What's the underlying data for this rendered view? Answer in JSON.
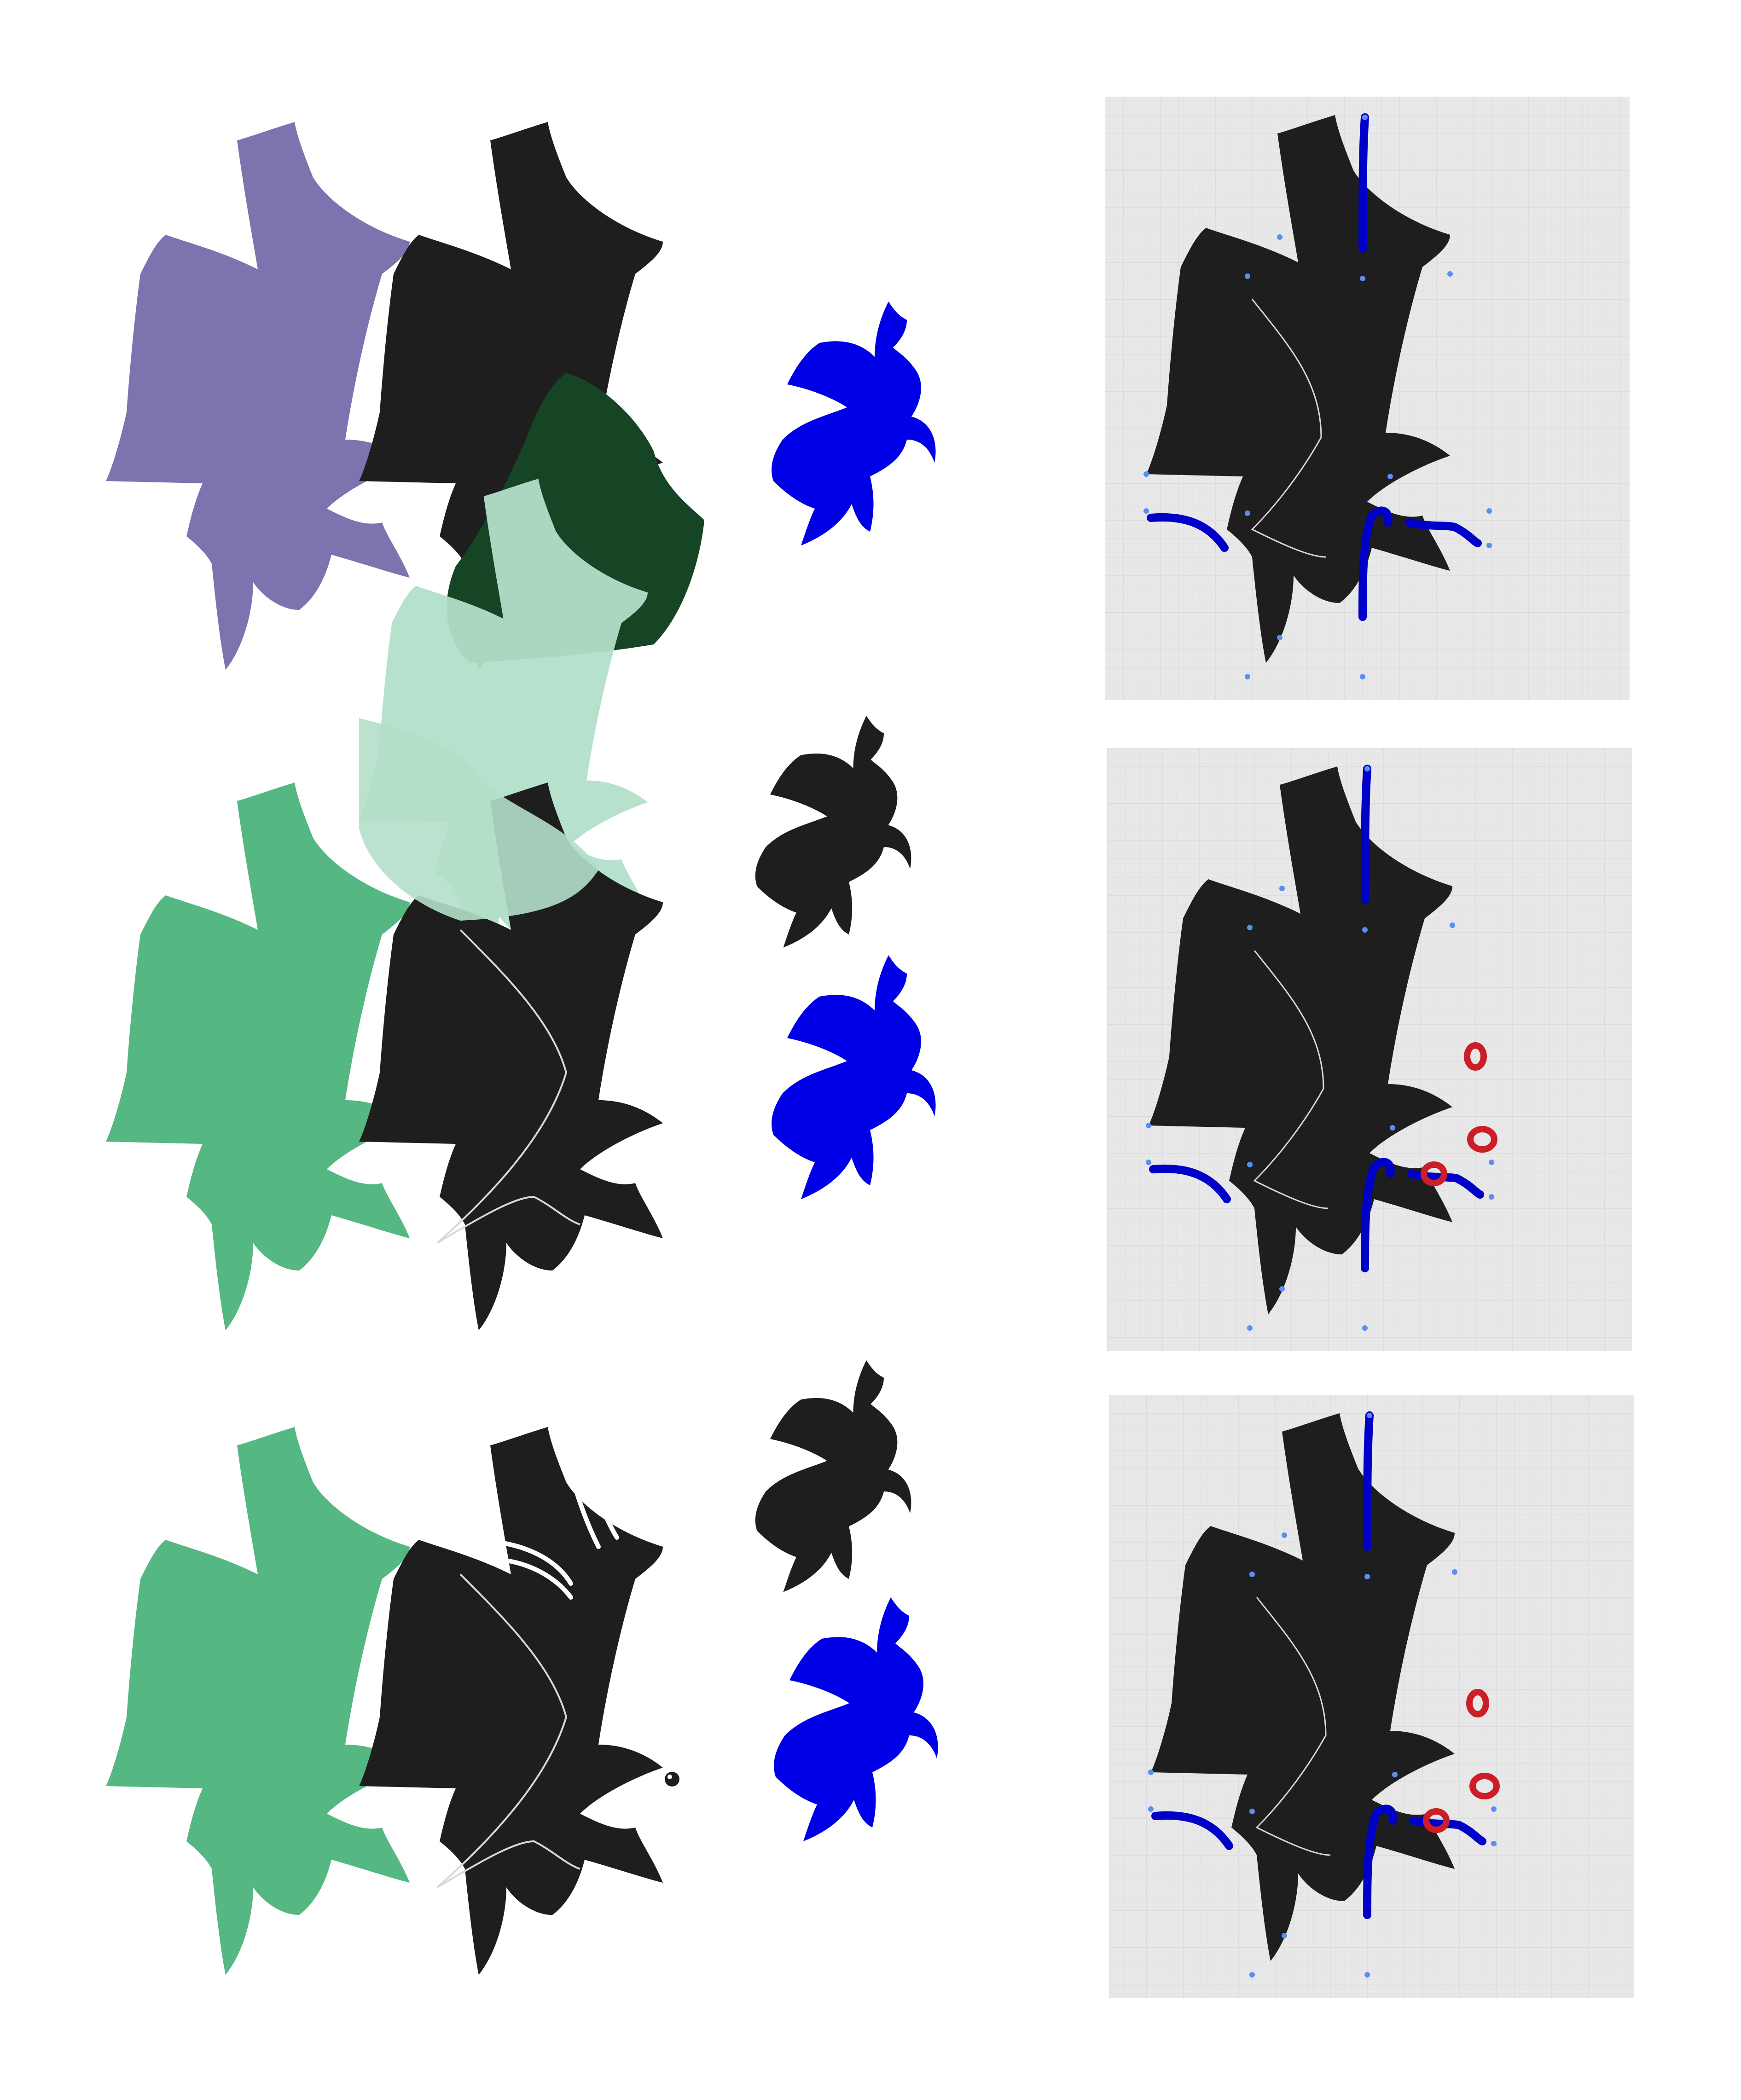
{
  "page": {
    "background": "#ffffff"
  },
  "colors": {
    "purple": "#7b74ae",
    "black": "#1e1e1e",
    "dark_green": "#154524",
    "mint": "#b2dfc9",
    "green": "#55b782",
    "blue": "#0000e6",
    "panel_bg": "#e8e8e8",
    "grid_line": "#d4d4dc",
    "anchor": "#5b8ef0",
    "stroke_blue": "#0000c8",
    "mark_red": "#cc1e28",
    "guide": "#d8d8d8"
  },
  "rows": [
    {
      "id": "row-1",
      "shapes": [
        "purple-silhouette",
        "black-silhouette",
        "dark-green-overlap",
        "mint-silhouette"
      ],
      "birds": [
        "blue-bird"
      ],
      "panel": {
        "red_marks": 0
      }
    },
    {
      "id": "row-2",
      "shapes": [
        "green-silhouette",
        "black-silhouette-with-guide"
      ],
      "birds": [
        "black-bird",
        "blue-bird"
      ],
      "panel": {
        "red_marks": 3
      }
    },
    {
      "id": "row-3",
      "shapes": [
        "green-silhouette",
        "black-silhouette-with-feathers-and-head"
      ],
      "birds": [
        "black-bird",
        "blue-bird"
      ],
      "panel": {
        "red_marks": 3
      }
    }
  ]
}
